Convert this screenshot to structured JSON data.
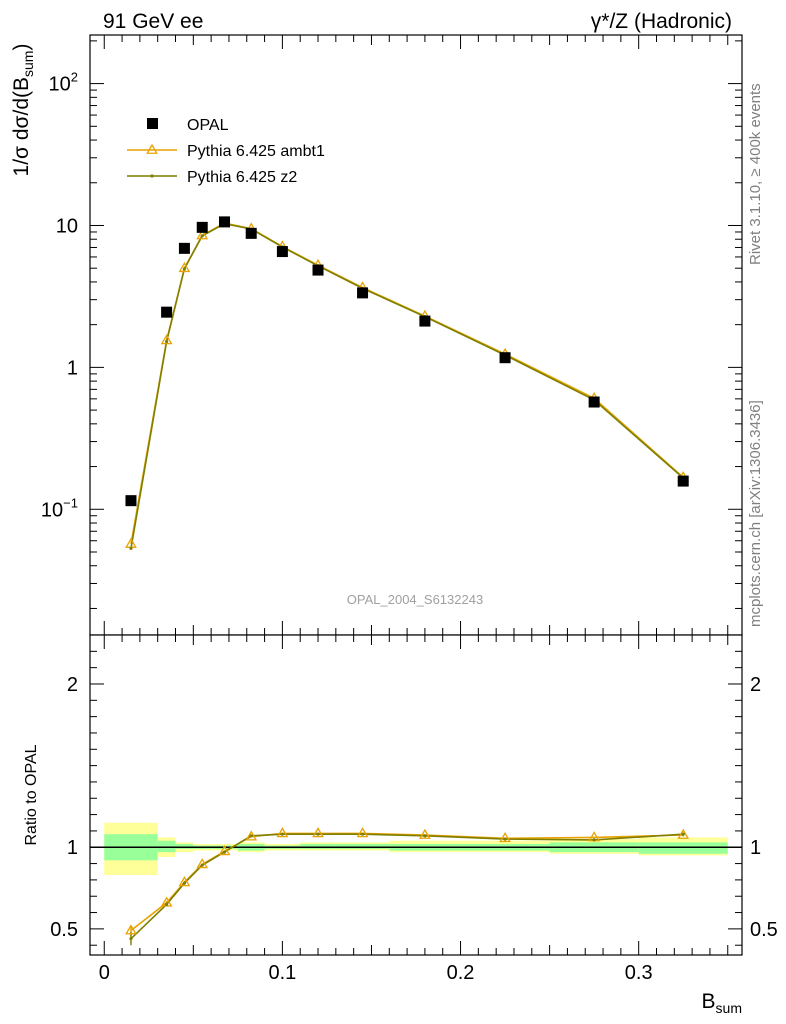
{
  "header": {
    "left": "91 GeV ee",
    "right": "γ*/Z (Hadronic)"
  },
  "side_labels": {
    "top": "Rivet 3.1.10, ≥ 400k events",
    "bottom": "mcplots.cern.ch [arXiv:1306.3436]"
  },
  "watermark": "OPAL_2004_S6132243",
  "colors": {
    "data": "#000000",
    "ambt1": "#e8a200",
    "z2": "#7f7f00",
    "band_inner": "#99ff99",
    "band_outer": "#ffff99"
  },
  "chart_data": [
    {
      "type": "line",
      "scale": "log-y",
      "ylabel": "1/σ dσ/d(B_sum)",
      "ylim": [
        0.013,
        220
      ],
      "xlim": [
        -0.008,
        0.358
      ],
      "y_ticks": [
        "10⁻¹",
        "1",
        "10",
        "10²"
      ],
      "legend": {
        "position": "top-left",
        "entries": [
          "OPAL",
          "Pythia 6.425 ambt1",
          "Pythia 6.425 z2"
        ]
      },
      "series": [
        {
          "name": "OPAL",
          "style": "square-marker",
          "x": [
            0.015,
            0.035,
            0.045,
            0.055,
            0.0675,
            0.0825,
            0.1,
            0.12,
            0.145,
            0.18,
            0.225,
            0.275,
            0.325
          ],
          "y": [
            0.115,
            2.45,
            6.9,
            9.7,
            10.6,
            8.8,
            6.55,
            4.85,
            3.35,
            2.12,
            1.17,
            0.57,
            0.158
          ]
        },
        {
          "name": "Pythia 6.425 ambt1",
          "style": "open-triangle",
          "x": [
            0.015,
            0.035,
            0.045,
            0.055,
            0.0675,
            0.0825,
            0.1,
            0.12,
            0.145,
            0.18,
            0.225,
            0.275,
            0.325
          ],
          "y": [
            0.057,
            1.55,
            5.0,
            8.5,
            10.4,
            9.5,
            7.1,
            5.25,
            3.65,
            2.3,
            1.24,
            0.605,
            0.168
          ]
        },
        {
          "name": "Pythia 6.425 z2",
          "style": "line-dot",
          "x": [
            0.015,
            0.035,
            0.045,
            0.055,
            0.0675,
            0.0825,
            0.1,
            0.12,
            0.145,
            0.18,
            0.225,
            0.275,
            0.325
          ],
          "y": [
            0.053,
            1.52,
            4.95,
            8.45,
            10.3,
            9.45,
            7.05,
            5.2,
            3.6,
            2.28,
            1.22,
            0.59,
            0.166
          ]
        }
      ]
    },
    {
      "type": "line",
      "scale": "linear",
      "xlabel": "B_sum",
      "ylabel": "Ratio to OPAL",
      "ylim": [
        0.34,
        2.3
      ],
      "xlim": [
        -0.008,
        0.358
      ],
      "x_ticks": [
        "0",
        "0.1",
        "0.2",
        "0.3"
      ],
      "y_ticks": [
        "0.5",
        "1",
        "2"
      ],
      "reference": 1,
      "bands": [
        {
          "x0": 0.0,
          "x1": 0.03,
          "inner": [
            0.92,
            1.08
          ],
          "outer": [
            0.83,
            1.15
          ]
        },
        {
          "x0": 0.03,
          "x1": 0.04,
          "inner": [
            0.97,
            1.04
          ],
          "outer": [
            0.94,
            1.06
          ]
        },
        {
          "x0": 0.04,
          "x1": 0.05,
          "inner": [
            0.99,
            1.02
          ],
          "outer": [
            0.97,
            1.03
          ]
        },
        {
          "x0": 0.05,
          "x1": 0.06,
          "inner": [
            0.99,
            1.01
          ],
          "outer": [
            0.98,
            1.02
          ]
        },
        {
          "x0": 0.06,
          "x1": 0.075,
          "inner": [
            0.99,
            1.01
          ],
          "outer": [
            0.98,
            1.02
          ]
        },
        {
          "x0": 0.075,
          "x1": 0.09,
          "inner": [
            0.98,
            1.02
          ],
          "outer": [
            0.97,
            1.03
          ]
        },
        {
          "x0": 0.09,
          "x1": 0.11,
          "inner": [
            0.99,
            1.01
          ],
          "outer": [
            0.98,
            1.02
          ]
        },
        {
          "x0": 0.11,
          "x1": 0.13,
          "inner": [
            0.99,
            1.02
          ],
          "outer": [
            0.98,
            1.03
          ]
        },
        {
          "x0": 0.13,
          "x1": 0.16,
          "inner": [
            0.99,
            1.02
          ],
          "outer": [
            0.98,
            1.03
          ]
        },
        {
          "x0": 0.16,
          "x1": 0.2,
          "inner": [
            0.98,
            1.02
          ],
          "outer": [
            0.97,
            1.04
          ]
        },
        {
          "x0": 0.2,
          "x1": 0.25,
          "inner": [
            0.98,
            1.02
          ],
          "outer": [
            0.97,
            1.04
          ]
        },
        {
          "x0": 0.25,
          "x1": 0.3,
          "inner": [
            0.97,
            1.03
          ],
          "outer": [
            0.96,
            1.05
          ]
        },
        {
          "x0": 0.3,
          "x1": 0.35,
          "inner": [
            0.96,
            1.03
          ],
          "outer": [
            0.95,
            1.06
          ]
        }
      ],
      "series": [
        {
          "name": "Pythia 6.425 ambt1",
          "x": [
            0.015,
            0.035,
            0.045,
            0.055,
            0.0675,
            0.0825,
            0.1,
            0.12,
            0.145,
            0.18,
            0.225,
            0.275,
            0.325
          ],
          "y": [
            0.49,
            0.66,
            0.785,
            0.895,
            0.975,
            1.065,
            1.085,
            1.085,
            1.085,
            1.075,
            1.055,
            1.06,
            1.075
          ],
          "err": [
            0.03,
            0.01,
            0.01,
            0.005,
            0.005,
            0.005,
            0.005,
            0.005,
            0.005,
            0.005,
            0.005,
            0.005,
            0.01
          ]
        },
        {
          "name": "Pythia 6.425 z2",
          "x": [
            0.015,
            0.035,
            0.045,
            0.055,
            0.0675,
            0.0825,
            0.1,
            0.12,
            0.145,
            0.18,
            0.225,
            0.275,
            0.325
          ],
          "y": [
            0.44,
            0.65,
            0.78,
            0.89,
            0.97,
            1.07,
            1.08,
            1.08,
            1.08,
            1.07,
            1.05,
            1.045,
            1.08
          ],
          "err": [
            0.04,
            0.01,
            0.01,
            0.005,
            0.005,
            0.005,
            0.005,
            0.005,
            0.005,
            0.005,
            0.005,
            0.005,
            0.01
          ]
        }
      ]
    }
  ]
}
